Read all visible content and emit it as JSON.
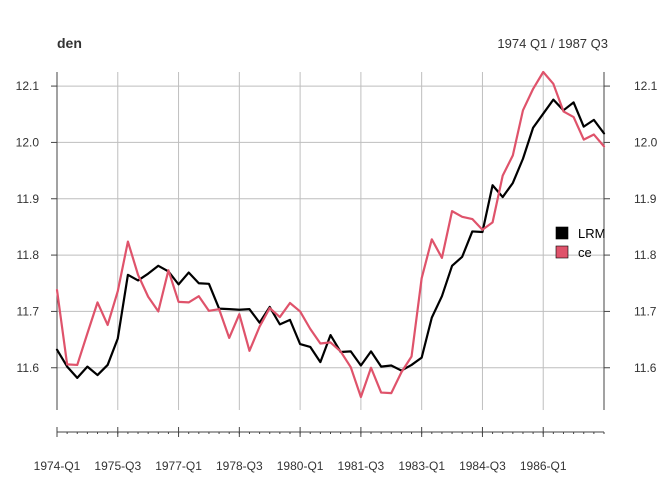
{
  "chart_data": {
    "type": "line",
    "title": "den",
    "subtitle": "1974 Q1 / 1987 Q3",
    "xlabel": "",
    "ylabel": "",
    "x": [
      "1974-Q1",
      "1974-Q2",
      "1974-Q3",
      "1974-Q4",
      "1975-Q1",
      "1975-Q2",
      "1975-Q3",
      "1975-Q4",
      "1976-Q1",
      "1976-Q2",
      "1976-Q3",
      "1976-Q4",
      "1977-Q1",
      "1977-Q2",
      "1977-Q3",
      "1977-Q4",
      "1978-Q1",
      "1978-Q2",
      "1978-Q3",
      "1978-Q4",
      "1979-Q1",
      "1979-Q2",
      "1979-Q3",
      "1979-Q4",
      "1980-Q1",
      "1980-Q2",
      "1980-Q3",
      "1980-Q4",
      "1981-Q1",
      "1981-Q2",
      "1981-Q3",
      "1981-Q4",
      "1982-Q1",
      "1982-Q2",
      "1982-Q3",
      "1982-Q4",
      "1983-Q1",
      "1983-Q2",
      "1983-Q3",
      "1983-Q4",
      "1984-Q1",
      "1984-Q2",
      "1984-Q3",
      "1984-Q4",
      "1985-Q1",
      "1985-Q2",
      "1985-Q3",
      "1985-Q4",
      "1986-Q1",
      "1986-Q2",
      "1986-Q3",
      "1986-Q4",
      "1987-Q1",
      "1987-Q2",
      "1987-Q3"
    ],
    "xticks": [
      {
        "index": 0,
        "label": "1974-Q1"
      },
      {
        "index": 6,
        "label": "1975-Q3"
      },
      {
        "index": 12,
        "label": "1977-Q1"
      },
      {
        "index": 18,
        "label": "1978-Q3"
      },
      {
        "index": 24,
        "label": "1980-Q1"
      },
      {
        "index": 30,
        "label": "1981-Q3"
      },
      {
        "index": 36,
        "label": "1983-Q1"
      },
      {
        "index": 42,
        "label": "1984-Q3"
      },
      {
        "index": 48,
        "label": "1986-Q1"
      }
    ],
    "yticks": [
      11.6,
      11.7,
      11.8,
      11.9,
      12.0,
      12.1
    ],
    "ytick_labels": [
      "11.6",
      "11.7",
      "11.8",
      "11.9",
      "12.0",
      "12.1"
    ],
    "ylim": [
      11.525,
      12.125
    ],
    "grid": true,
    "legend_position": "right",
    "series": [
      {
        "name": "LRM",
        "color": "#000000",
        "values": [
          11.632,
          11.602,
          11.582,
          11.602,
          11.587,
          11.605,
          11.652,
          11.765,
          11.755,
          11.767,
          11.781,
          11.771,
          11.748,
          11.769,
          11.75,
          11.749,
          11.705,
          11.704,
          11.703,
          11.704,
          11.68,
          11.708,
          11.677,
          11.685,
          11.642,
          11.637,
          11.61,
          11.658,
          11.628,
          11.629,
          11.604,
          11.629,
          11.602,
          11.604,
          11.595,
          11.605,
          11.618,
          11.689,
          11.727,
          11.781,
          11.797,
          11.842,
          11.841,
          11.924,
          11.903,
          11.928,
          11.971,
          12.026,
          12.051,
          12.076,
          12.057,
          12.071,
          12.028,
          12.04,
          12.016
        ]
      },
      {
        "name": "ce",
        "color": "#df536b",
        "values": [
          11.738,
          11.606,
          11.605,
          11.661,
          11.716,
          11.676,
          11.736,
          11.824,
          11.765,
          11.726,
          11.7,
          11.773,
          11.717,
          11.716,
          11.727,
          11.701,
          11.704,
          11.653,
          11.695,
          11.63,
          11.673,
          11.706,
          11.69,
          11.715,
          11.7,
          11.669,
          11.643,
          11.645,
          11.629,
          11.601,
          11.548,
          11.6,
          11.556,
          11.555,
          11.592,
          11.62,
          11.759,
          11.828,
          11.795,
          11.878,
          11.868,
          11.864,
          11.845,
          11.858,
          11.941,
          11.977,
          12.057,
          12.095,
          12.125,
          12.104,
          12.055,
          12.045,
          12.005,
          12.014,
          11.993
        ]
      }
    ]
  }
}
